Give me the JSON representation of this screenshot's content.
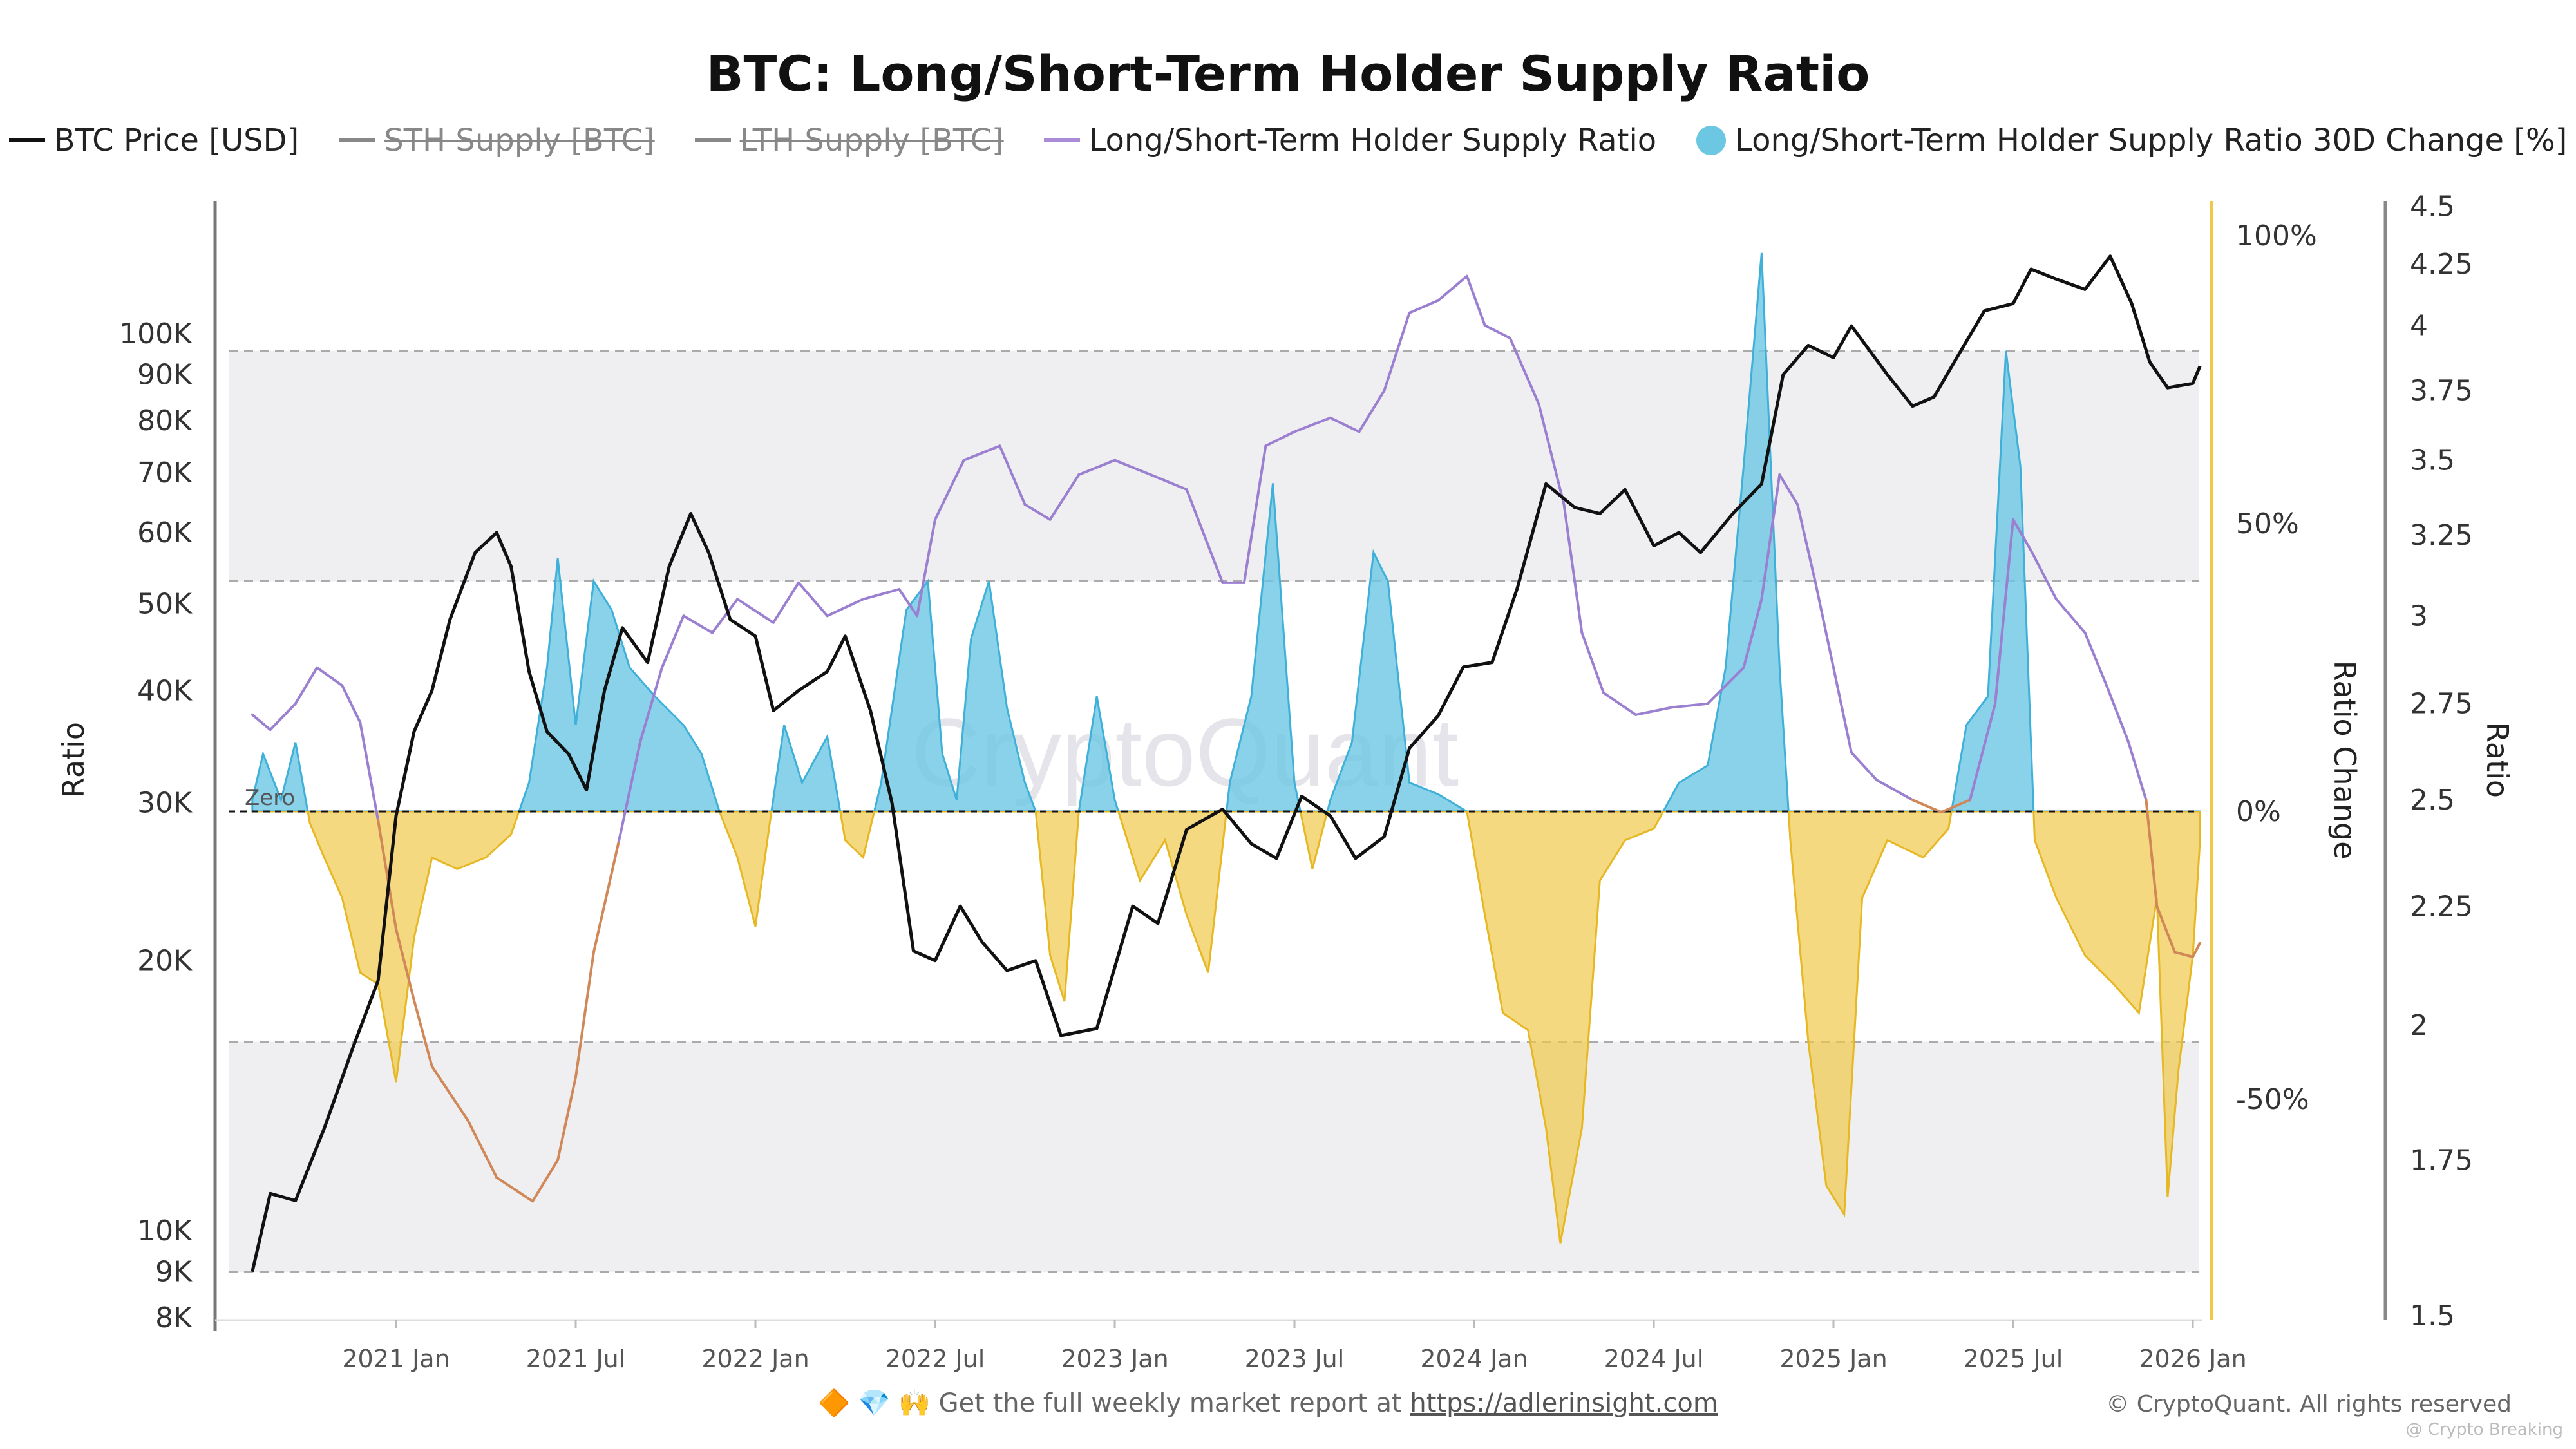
{
  "title": "BTC: Long/Short-Term Holder Supply Ratio",
  "legend": [
    {
      "label": "BTC Price [USD]",
      "color": "#111111",
      "hidden": false,
      "marker": "line"
    },
    {
      "label": "STH Supply [BTC]",
      "color": "#888888",
      "hidden": true,
      "marker": "line"
    },
    {
      "label": "LTH Supply [BTC]",
      "color": "#888888",
      "hidden": true,
      "marker": "line"
    },
    {
      "label": "Long/Short-Term Holder Supply Ratio",
      "color": "#9b7fd0",
      "hidden": false,
      "marker": "line"
    },
    {
      "label": "Long/Short-Term Holder Supply Ratio 30D Change [%]",
      "color": "#6cc7e3",
      "hidden": false,
      "marker": "dot"
    }
  ],
  "footer": {
    "emoji": "🔶 💎 🙌",
    "text": "Get the full weekly market report at",
    "link": "https://adlerinsight.com"
  },
  "copyright": "© CryptoQuant. All rights reserved",
  "credit": "@ Crypto Breaking",
  "watermark": "CryptoQuant",
  "chart_data": {
    "type": "line",
    "title": "BTC: Long/Short-Term Holder Supply Ratio",
    "x_ticks": [
      "2021 Jan",
      "2021 Jul",
      "2022 Jan",
      "2022 Jul",
      "2023 Jan",
      "2023 Jul",
      "2024 Jan",
      "2024 Jul",
      "2025 Jan",
      "2025 Jul",
      "2026 Jan"
    ],
    "x_tick_years": [
      2021,
      2021.5,
      2022,
      2022.5,
      2023,
      2023.5,
      2024,
      2024.5,
      2025,
      2025.5,
      2026
    ],
    "left_axis": {
      "label": "Ratio",
      "scale": "log",
      "range": [
        8000,
        150000
      ],
      "ticks": [
        "100K",
        "90K",
        "80K",
        "70K",
        "60K",
        "50K",
        "40K",
        "30K",
        "20K",
        "10K",
        "9K",
        "8K"
      ],
      "tick_values": [
        100000,
        90000,
        80000,
        70000,
        60000,
        50000,
        40000,
        30000,
        20000,
        10000,
        9000,
        8000
      ]
    },
    "change_axis": {
      "label": "Ratio Change",
      "ticks": [
        "100%",
        "50%",
        "0%",
        "-50%"
      ],
      "tick_values": [
        100,
        50,
        0,
        -50
      ],
      "color": "#f0c94a"
    },
    "ratio_axis": {
      "label": "Ratio",
      "scale": "log",
      "range": [
        1.5,
        4.5
      ],
      "ticks": [
        "4.5",
        "4.25",
        "4",
        "3.75",
        "3.5",
        "3.25",
        "3",
        "2.75",
        "2.5",
        "2.25",
        "2",
        "1.75",
        "1.5"
      ],
      "tick_values": [
        4.5,
        4.25,
        4,
        3.75,
        3.5,
        3.25,
        3,
        2.75,
        2.5,
        2.25,
        2,
        1.75,
        1.5
      ]
    },
    "zero_label": "Zero",
    "bands": [
      {
        "from": 40,
        "to": 80
      },
      {
        "from": -80,
        "to": -40
      }
    ],
    "grid": false,
    "legend_position": "top",
    "series": [
      {
        "name": "BTC Price [USD]",
        "axis": "left",
        "color": "#111111",
        "points": [
          [
            2020.6,
            9000
          ],
          [
            2020.65,
            11000
          ],
          [
            2020.72,
            10800
          ],
          [
            2020.8,
            13000
          ],
          [
            2020.88,
            16000
          ],
          [
            2020.95,
            19000
          ],
          [
            2021.0,
            29000
          ],
          [
            2021.05,
            36000
          ],
          [
            2021.1,
            40000
          ],
          [
            2021.15,
            48000
          ],
          [
            2021.22,
            57000
          ],
          [
            2021.28,
            60000
          ],
          [
            2021.32,
            55000
          ],
          [
            2021.37,
            42000
          ],
          [
            2021.42,
            36000
          ],
          [
            2021.48,
            34000
          ],
          [
            2021.53,
            31000
          ],
          [
            2021.58,
            40000
          ],
          [
            2021.63,
            47000
          ],
          [
            2021.7,
            43000
          ],
          [
            2021.76,
            55000
          ],
          [
            2021.82,
            63000
          ],
          [
            2021.87,
            57000
          ],
          [
            2021.93,
            48000
          ],
          [
            2022.0,
            46000
          ],
          [
            2022.05,
            38000
          ],
          [
            2022.12,
            40000
          ],
          [
            2022.2,
            42000
          ],
          [
            2022.25,
            46000
          ],
          [
            2022.32,
            38000
          ],
          [
            2022.38,
            30000
          ],
          [
            2022.44,
            20500
          ],
          [
            2022.5,
            20000
          ],
          [
            2022.57,
            23000
          ],
          [
            2022.63,
            21000
          ],
          [
            2022.7,
            19500
          ],
          [
            2022.78,
            20000
          ],
          [
            2022.85,
            16500
          ],
          [
            2022.95,
            16800
          ],
          [
            2023.05,
            23000
          ],
          [
            2023.12,
            22000
          ],
          [
            2023.2,
            28000
          ],
          [
            2023.3,
            29500
          ],
          [
            2023.38,
            27000
          ],
          [
            2023.45,
            26000
          ],
          [
            2023.52,
            30500
          ],
          [
            2023.6,
            29000
          ],
          [
            2023.67,
            26000
          ],
          [
            2023.75,
            27500
          ],
          [
            2023.82,
            34500
          ],
          [
            2023.9,
            37500
          ],
          [
            2023.97,
            42500
          ],
          [
            2024.05,
            43000
          ],
          [
            2024.12,
            52000
          ],
          [
            2024.2,
            68000
          ],
          [
            2024.28,
            64000
          ],
          [
            2024.35,
            63000
          ],
          [
            2024.42,
            67000
          ],
          [
            2024.5,
            58000
          ],
          [
            2024.57,
            60000
          ],
          [
            2024.63,
            57000
          ],
          [
            2024.72,
            63000
          ],
          [
            2024.8,
            68000
          ],
          [
            2024.86,
            90000
          ],
          [
            2024.93,
            97000
          ],
          [
            2025.0,
            94000
          ],
          [
            2025.05,
            102000
          ],
          [
            2025.15,
            90000
          ],
          [
            2025.22,
            83000
          ],
          [
            2025.28,
            85000
          ],
          [
            2025.35,
            95000
          ],
          [
            2025.42,
            106000
          ],
          [
            2025.5,
            108000
          ],
          [
            2025.55,
            118000
          ],
          [
            2025.62,
            115000
          ],
          [
            2025.7,
            112000
          ],
          [
            2025.77,
            122000
          ],
          [
            2025.83,
            108000
          ],
          [
            2025.88,
            93000
          ],
          [
            2025.93,
            87000
          ],
          [
            2026.0,
            88000
          ],
          [
            2026.02,
            92000
          ]
        ]
      },
      {
        "name": "Long/Short-Term Holder Supply Ratio",
        "axis": "ratio",
        "color": "#9b7fd0",
        "low_color": "#d08858",
        "points": [
          [
            2020.6,
            2.72
          ],
          [
            2020.65,
            2.68
          ],
          [
            2020.72,
            2.75
          ],
          [
            2020.78,
            2.85
          ],
          [
            2020.85,
            2.8
          ],
          [
            2020.9,
            2.7
          ],
          [
            2020.95,
            2.45
          ],
          [
            2021.0,
            2.2
          ],
          [
            2021.05,
            2.05
          ],
          [
            2021.1,
            1.92
          ],
          [
            2021.2,
            1.82
          ],
          [
            2021.28,
            1.72
          ],
          [
            2021.38,
            1.68
          ],
          [
            2021.45,
            1.75
          ],
          [
            2021.5,
            1.9
          ],
          [
            2021.55,
            2.15
          ],
          [
            2021.62,
            2.4
          ],
          [
            2021.68,
            2.65
          ],
          [
            2021.74,
            2.85
          ],
          [
            2021.8,
            3.0
          ],
          [
            2021.88,
            2.95
          ],
          [
            2021.95,
            3.05
          ],
          [
            2022.05,
            2.98
          ],
          [
            2022.12,
            3.1
          ],
          [
            2022.2,
            3.0
          ],
          [
            2022.3,
            3.05
          ],
          [
            2022.4,
            3.08
          ],
          [
            2022.45,
            3.0
          ],
          [
            2022.5,
            3.3
          ],
          [
            2022.58,
            3.5
          ],
          [
            2022.68,
            3.55
          ],
          [
            2022.75,
            3.35
          ],
          [
            2022.82,
            3.3
          ],
          [
            2022.9,
            3.45
          ],
          [
            2023.0,
            3.5
          ],
          [
            2023.1,
            3.45
          ],
          [
            2023.2,
            3.4
          ],
          [
            2023.3,
            3.1
          ],
          [
            2023.36,
            3.1
          ],
          [
            2023.42,
            3.55
          ],
          [
            2023.5,
            3.6
          ],
          [
            2023.6,
            3.65
          ],
          [
            2023.68,
            3.6
          ],
          [
            2023.75,
            3.75
          ],
          [
            2023.82,
            4.05
          ],
          [
            2023.9,
            4.1
          ],
          [
            2023.98,
            4.2
          ],
          [
            2024.03,
            4.0
          ],
          [
            2024.1,
            3.95
          ],
          [
            2024.18,
            3.7
          ],
          [
            2024.25,
            3.35
          ],
          [
            2024.3,
            2.95
          ],
          [
            2024.36,
            2.78
          ],
          [
            2024.45,
            2.72
          ],
          [
            2024.55,
            2.74
          ],
          [
            2024.65,
            2.75
          ],
          [
            2024.75,
            2.85
          ],
          [
            2024.8,
            3.05
          ],
          [
            2024.85,
            3.45
          ],
          [
            2024.9,
            3.35
          ],
          [
            2024.95,
            3.1
          ],
          [
            2025.0,
            2.85
          ],
          [
            2025.05,
            2.62
          ],
          [
            2025.12,
            2.55
          ],
          [
            2025.22,
            2.5
          ],
          [
            2025.3,
            2.47
          ],
          [
            2025.38,
            2.5
          ],
          [
            2025.45,
            2.75
          ],
          [
            2025.5,
            3.3
          ],
          [
            2025.55,
            3.2
          ],
          [
            2025.62,
            3.05
          ],
          [
            2025.7,
            2.95
          ],
          [
            2025.76,
            2.8
          ],
          [
            2025.82,
            2.65
          ],
          [
            2025.87,
            2.5
          ],
          [
            2025.9,
            2.25
          ],
          [
            2025.95,
            2.15
          ],
          [
            2026.0,
            2.14
          ],
          [
            2026.02,
            2.17
          ]
        ]
      },
      {
        "name": "Long/Short-Term Holder Supply Ratio 30D Change [%]",
        "axis": "change",
        "type": "area",
        "color_positive": "#6cc7e3",
        "color_negative": "#f0c94a",
        "points": [
          [
            2020.6,
            2
          ],
          [
            2020.63,
            10
          ],
          [
            2020.68,
            2
          ],
          [
            2020.72,
            12
          ],
          [
            2020.76,
            -2
          ],
          [
            2020.8,
            -8
          ],
          [
            2020.85,
            -15
          ],
          [
            2020.9,
            -28
          ],
          [
            2020.95,
            -30
          ],
          [
            2021.0,
            -47
          ],
          [
            2021.05,
            -22
          ],
          [
            2021.1,
            -8
          ],
          [
            2021.17,
            -10
          ],
          [
            2021.25,
            -8
          ],
          [
            2021.32,
            -4
          ],
          [
            2021.37,
            5
          ],
          [
            2021.42,
            25
          ],
          [
            2021.45,
            44
          ],
          [
            2021.5,
            15
          ],
          [
            2021.55,
            40
          ],
          [
            2021.6,
            35
          ],
          [
            2021.65,
            25
          ],
          [
            2021.72,
            20
          ],
          [
            2021.8,
            15
          ],
          [
            2021.85,
            10
          ],
          [
            2021.9,
            0
          ],
          [
            2021.95,
            -8
          ],
          [
            2022.0,
            -20
          ],
          [
            2022.04,
            -2
          ],
          [
            2022.08,
            15
          ],
          [
            2022.13,
            5
          ],
          [
            2022.2,
            13
          ],
          [
            2022.25,
            -5
          ],
          [
            2022.3,
            -8
          ],
          [
            2022.35,
            5
          ],
          [
            2022.42,
            35
          ],
          [
            2022.48,
            40
          ],
          [
            2022.52,
            10
          ],
          [
            2022.56,
            2
          ],
          [
            2022.6,
            30
          ],
          [
            2022.65,
            40
          ],
          [
            2022.7,
            18
          ],
          [
            2022.75,
            5
          ],
          [
            2022.78,
            0
          ],
          [
            2022.82,
            -25
          ],
          [
            2022.86,
            -33
          ],
          [
            2022.9,
            0
          ],
          [
            2022.95,
            20
          ],
          [
            2023.0,
            2
          ],
          [
            2023.07,
            -12
          ],
          [
            2023.14,
            -5
          ],
          [
            2023.2,
            -18
          ],
          [
            2023.26,
            -28
          ],
          [
            2023.32,
            5
          ],
          [
            2023.38,
            20
          ],
          [
            2023.44,
            57
          ],
          [
            2023.5,
            5
          ],
          [
            2023.55,
            -10
          ],
          [
            2023.6,
            2
          ],
          [
            2023.66,
            12
          ],
          [
            2023.72,
            45
          ],
          [
            2023.76,
            40
          ],
          [
            2023.82,
            5
          ],
          [
            2023.9,
            3
          ],
          [
            2023.98,
            0
          ],
          [
            2024.03,
            -18
          ],
          [
            2024.08,
            -35
          ],
          [
            2024.15,
            -38
          ],
          [
            2024.2,
            -55
          ],
          [
            2024.24,
            -75
          ],
          [
            2024.3,
            -55
          ],
          [
            2024.35,
            -12
          ],
          [
            2024.42,
            -5
          ],
          [
            2024.5,
            -3
          ],
          [
            2024.57,
            5
          ],
          [
            2024.65,
            8
          ],
          [
            2024.7,
            25
          ],
          [
            2024.75,
            60
          ],
          [
            2024.8,
            97
          ],
          [
            2024.85,
            25
          ],
          [
            2024.88,
            -5
          ],
          [
            2024.93,
            -40
          ],
          [
            2024.98,
            -65
          ],
          [
            2025.03,
            -70
          ],
          [
            2025.08,
            -15
          ],
          [
            2025.15,
            -5
          ],
          [
            2025.25,
            -8
          ],
          [
            2025.32,
            -3
          ],
          [
            2025.37,
            15
          ],
          [
            2025.43,
            20
          ],
          [
            2025.48,
            80
          ],
          [
            2025.52,
            60
          ],
          [
            2025.56,
            -5
          ],
          [
            2025.62,
            -15
          ],
          [
            2025.7,
            -25
          ],
          [
            2025.78,
            -30
          ],
          [
            2025.85,
            -35
          ],
          [
            2025.9,
            -15
          ],
          [
            2025.93,
            -67
          ],
          [
            2025.96,
            -45
          ],
          [
            2026.0,
            -25
          ],
          [
            2026.02,
            -5
          ]
        ]
      }
    ]
  }
}
